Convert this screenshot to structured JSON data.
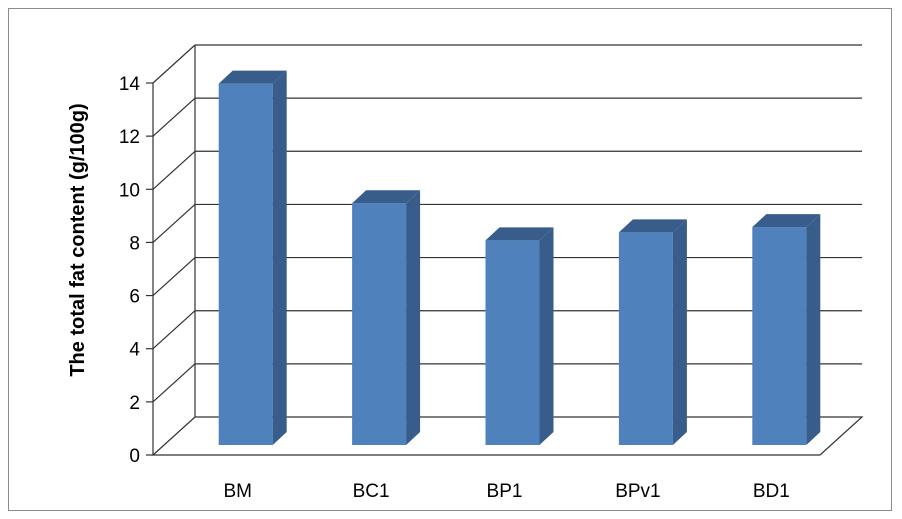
{
  "chart_data": {
    "type": "bar",
    "title": "",
    "xlabel": "",
    "ylabel": "The total fat content (g/100g)",
    "ylim": [
      0,
      14
    ],
    "yticks": [
      0,
      2,
      4,
      6,
      8,
      10,
      12,
      14
    ],
    "categories": [
      "BM",
      "BC1",
      "BP1",
      "BPv1",
      "BD1"
    ],
    "values": [
      13.6,
      9.1,
      7.7,
      8.0,
      8.2
    ],
    "grid": true,
    "legend": "none",
    "colors": {
      "bar_front": "#4f81bd",
      "bar_side": "#385d8a",
      "bar_top": "#385d8a",
      "grid": "#333333"
    }
  }
}
